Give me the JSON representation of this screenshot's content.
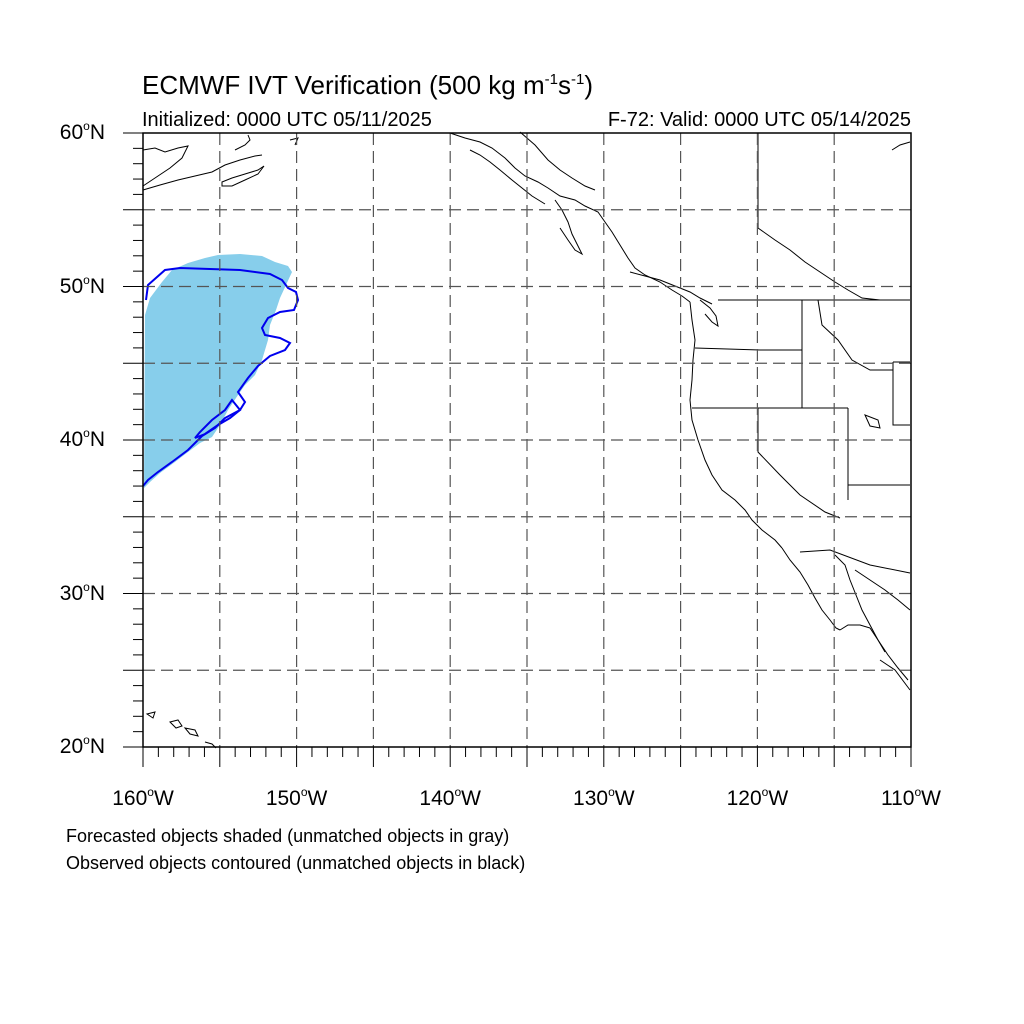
{
  "title": {
    "main": "ECMWF IVT Verification (500 kg m",
    "sup1": "-1",
    "mid": "s",
    "sup2": "-1",
    "end": ")"
  },
  "subtitle_left": "Initialized: 0000 UTC 05/11/2025",
  "subtitle_right": "F-72: Valid: 0000 UTC 05/14/2025",
  "lat_labels": [
    {
      "num": "60",
      "hem": "N"
    },
    {
      "num": "50",
      "hem": "N"
    },
    {
      "num": "40",
      "hem": "N"
    },
    {
      "num": "30",
      "hem": "N"
    },
    {
      "num": "20",
      "hem": "N"
    }
  ],
  "lon_labels": [
    {
      "num": "160",
      "hem": "W"
    },
    {
      "num": "150",
      "hem": "W"
    },
    {
      "num": "140",
      "hem": "W"
    },
    {
      "num": "130",
      "hem": "W"
    },
    {
      "num": "120",
      "hem": "W"
    },
    {
      "num": "110",
      "hem": "W"
    }
  ],
  "captions": {
    "line1": "Forecasted objects shaded (unmatched objects in gray)",
    "line2": "Observed objects contoured (unmatched objects in black)"
  },
  "colors": {
    "forecast_fill": "#87ceeb",
    "observed_contour": "#0000ee",
    "coastline": "#000000",
    "grid": "#555555"
  },
  "map_extent": {
    "lon_min": -160,
    "lon_max": -110,
    "lat_min": 20,
    "lat_max": 60
  }
}
